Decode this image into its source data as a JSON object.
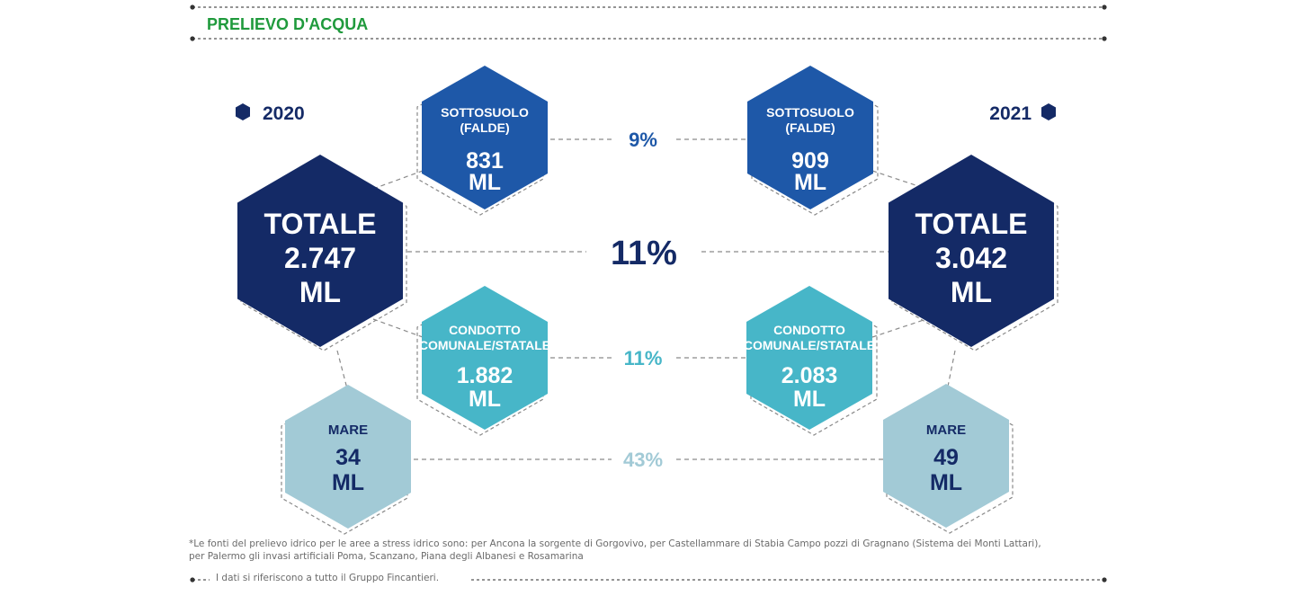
{
  "section_title": "PRELIEVO D'ACQUA",
  "years": {
    "left": "2020",
    "right": "2021"
  },
  "colors": {
    "title_green": "#1f9a3c",
    "navy": "#142a66",
    "blue": "#1e58a8",
    "teal": "#47b6c8",
    "light": "#a2cad6",
    "dash": "#8a8a8a"
  },
  "totals": {
    "left": {
      "title": "TOTALE",
      "value": "2.747",
      "unit": "ML"
    },
    "right": {
      "title": "TOTALE",
      "value": "3.042",
      "unit": "ML"
    },
    "change": "11%"
  },
  "sources": [
    {
      "key": "sottosuolo",
      "name_line1": "SOTTOSUOLO",
      "name_line2": "(FALDE)",
      "left": {
        "value": "831",
        "unit": "ML"
      },
      "right": {
        "value": "909",
        "unit": "ML"
      },
      "change": "9%"
    },
    {
      "key": "condotto",
      "name_line1": "CONDOTTO",
      "name_line2": "COMUNALE/STATALE",
      "left": {
        "value": "1.882",
        "unit": "ML"
      },
      "right": {
        "value": "2.083",
        "unit": "ML"
      },
      "change": "11%"
    },
    {
      "key": "mare",
      "name_line1": "MARE",
      "name_line2": "",
      "left": {
        "value": "34",
        "unit": "ML"
      },
      "right": {
        "value": "49",
        "unit": "ML"
      },
      "change": "43%"
    }
  ],
  "footnote": {
    "line1": "*Le fonti del prelievo idrico per le aree a stress idrico sono: per Ancona la sorgente di Gorgovivo, per Castellammare di Stabia Campo pozzi di Gragnano (Sistema dei Monti Lattari),",
    "line2": "per Palermo gli invasi artificiali Poma, Scanzano, Piana degli Albanesi e Rosamarina",
    "scope": "I dati si riferiscono a tutto il Gruppo Fincantieri."
  }
}
